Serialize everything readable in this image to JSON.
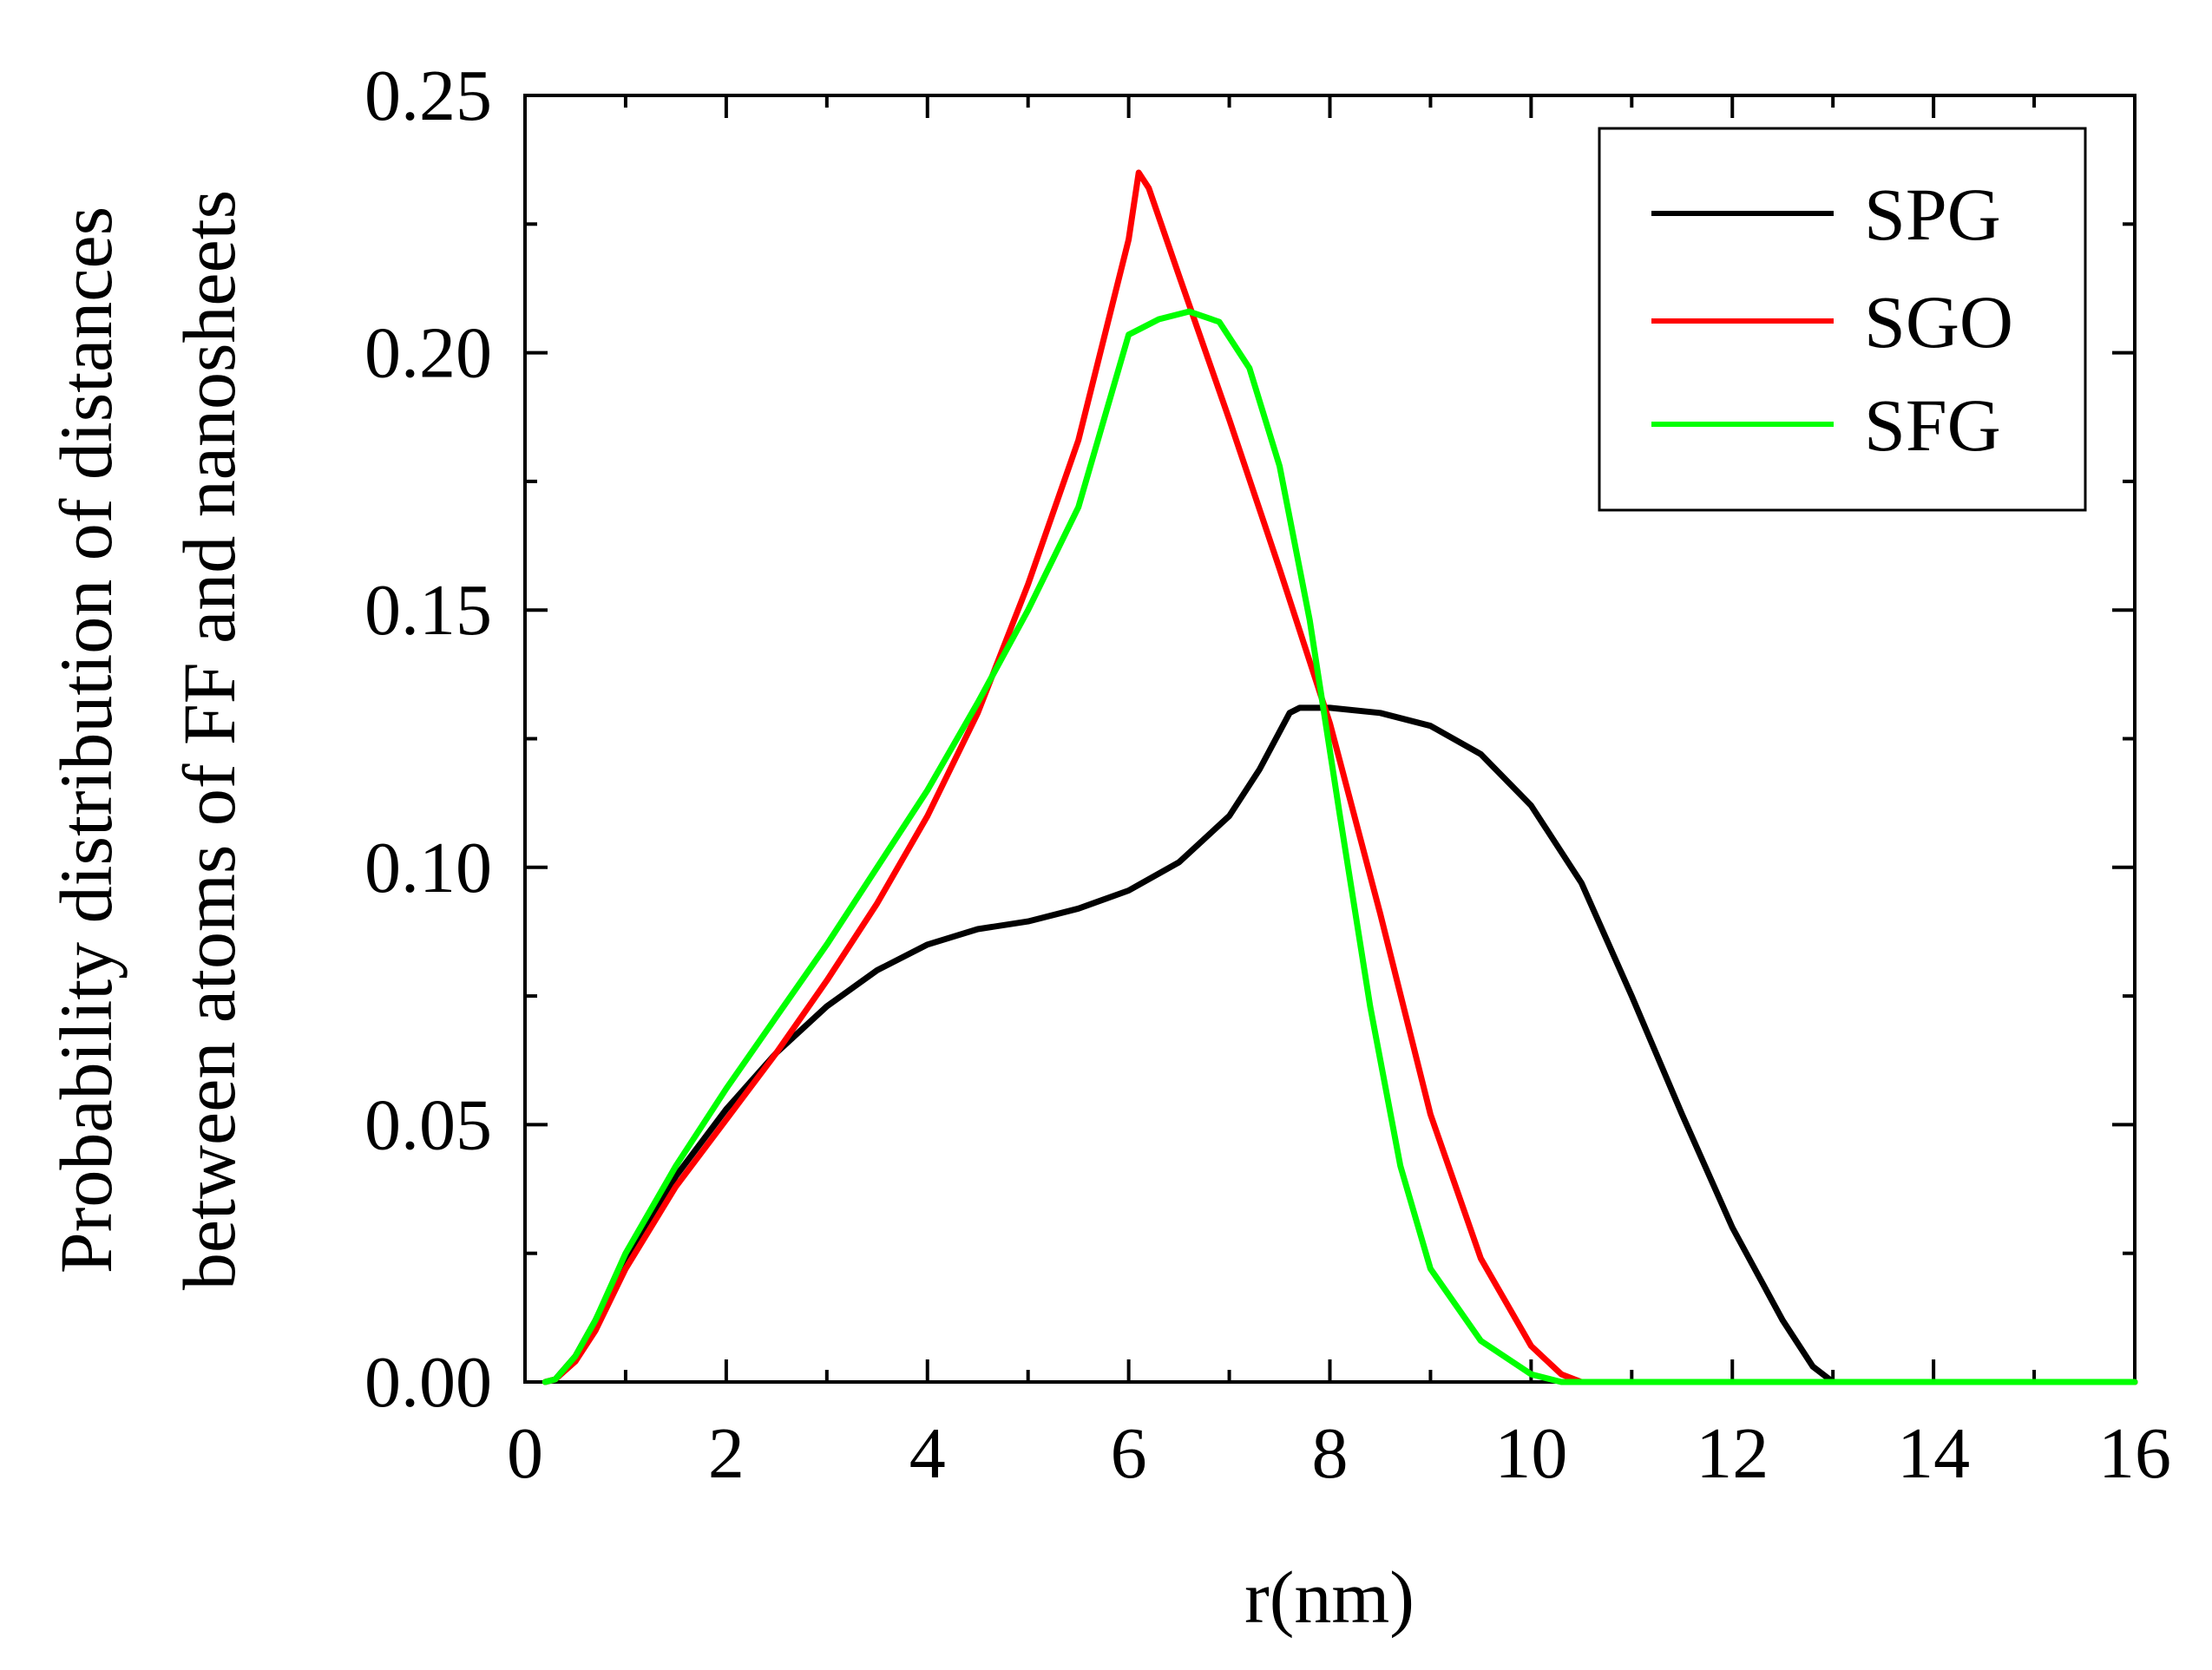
{
  "chart_data": {
    "type": "line",
    "title": "",
    "xlabel": "r(nm)",
    "ylabel_lines": [
      "Probability distribution of distances",
      "between atoms of FF and nanosheets"
    ],
    "xlim": [
      0,
      16
    ],
    "ylim": [
      0,
      0.25
    ],
    "xticks": [
      0,
      2,
      4,
      6,
      8,
      10,
      12,
      14,
      16
    ],
    "xtick_labels": [
      "0",
      "2",
      "4",
      "6",
      "8",
      "10",
      "12",
      "14",
      "16"
    ],
    "yticks": [
      0,
      0.05,
      0.1,
      0.15,
      0.2,
      0.25
    ],
    "ytick_labels": [
      "0.00",
      "0.05",
      "0.10",
      "0.15",
      "0.20",
      "0.25"
    ],
    "grid": false,
    "legend_position": "top-right",
    "series": [
      {
        "name": "SPG",
        "color": "#000000",
        "points": [
          [
            0.2,
            0.0
          ],
          [
            0.3,
            0.0005
          ],
          [
            0.5,
            0.005
          ],
          [
            0.7,
            0.012
          ],
          [
            1.0,
            0.024
          ],
          [
            1.5,
            0.04
          ],
          [
            2.0,
            0.053
          ],
          [
            2.5,
            0.064
          ],
          [
            3.0,
            0.073
          ],
          [
            3.5,
            0.08
          ],
          [
            4.0,
            0.085
          ],
          [
            4.5,
            0.088
          ],
          [
            5.0,
            0.0895
          ],
          [
            5.5,
            0.092
          ],
          [
            6.0,
            0.0955
          ],
          [
            6.5,
            0.101
          ],
          [
            7.0,
            0.11
          ],
          [
            7.3,
            0.119
          ],
          [
            7.6,
            0.13
          ],
          [
            7.7,
            0.131
          ],
          [
            8.0,
            0.131
          ],
          [
            8.5,
            0.13
          ],
          [
            9.0,
            0.1275
          ],
          [
            9.5,
            0.122
          ],
          [
            10.0,
            0.112
          ],
          [
            10.5,
            0.097
          ],
          [
            11.0,
            0.075
          ],
          [
            11.5,
            0.052
          ],
          [
            12.0,
            0.03
          ],
          [
            12.5,
            0.012
          ],
          [
            12.8,
            0.003
          ],
          [
            13.0,
            0.0
          ],
          [
            14.0,
            0.0
          ],
          [
            15.0,
            0.0
          ],
          [
            16.0,
            0.0
          ]
        ]
      },
      {
        "name": "SGO",
        "color": "#ff0000",
        "points": [
          [
            0.2,
            0.0
          ],
          [
            0.3,
            0.0005
          ],
          [
            0.5,
            0.004
          ],
          [
            0.7,
            0.01
          ],
          [
            1.0,
            0.022
          ],
          [
            1.5,
            0.038
          ],
          [
            2.0,
            0.051
          ],
          [
            2.5,
            0.064
          ],
          [
            3.0,
            0.078
          ],
          [
            3.5,
            0.093
          ],
          [
            4.0,
            0.11
          ],
          [
            4.5,
            0.13
          ],
          [
            5.0,
            0.155
          ],
          [
            5.5,
            0.183
          ],
          [
            6.0,
            0.222
          ],
          [
            6.1,
            0.235
          ],
          [
            6.2,
            0.232
          ],
          [
            6.5,
            0.215
          ],
          [
            7.0,
            0.187
          ],
          [
            7.5,
            0.158
          ],
          [
            8.0,
            0.128
          ],
          [
            8.5,
            0.091
          ],
          [
            9.0,
            0.052
          ],
          [
            9.5,
            0.024
          ],
          [
            10.0,
            0.007
          ],
          [
            10.3,
            0.0015
          ],
          [
            10.5,
            0.0
          ],
          [
            11.0,
            0.0
          ],
          [
            12.0,
            0.0
          ],
          [
            14.0,
            0.0
          ],
          [
            16.0,
            0.0
          ]
        ]
      },
      {
        "name": "SFG",
        "color": "#00ff00",
        "points": [
          [
            0.2,
            0.0
          ],
          [
            0.3,
            0.0005
          ],
          [
            0.5,
            0.005
          ],
          [
            0.7,
            0.012
          ],
          [
            1.0,
            0.025
          ],
          [
            1.5,
            0.042
          ],
          [
            2.0,
            0.057
          ],
          [
            2.5,
            0.071
          ],
          [
            3.0,
            0.085
          ],
          [
            3.5,
            0.1
          ],
          [
            4.0,
            0.115
          ],
          [
            4.5,
            0.132
          ],
          [
            5.0,
            0.15
          ],
          [
            5.5,
            0.17
          ],
          [
            6.0,
            0.2035
          ],
          [
            6.1,
            0.2045
          ],
          [
            6.3,
            0.2065
          ],
          [
            6.6,
            0.208
          ],
          [
            6.9,
            0.206
          ],
          [
            7.2,
            0.197
          ],
          [
            7.5,
            0.178
          ],
          [
            7.8,
            0.148
          ],
          [
            8.1,
            0.11
          ],
          [
            8.4,
            0.073
          ],
          [
            8.7,
            0.042
          ],
          [
            9.0,
            0.022
          ],
          [
            9.5,
            0.008
          ],
          [
            10.0,
            0.0015
          ],
          [
            10.3,
            0.0
          ],
          [
            11.0,
            0.0
          ],
          [
            12.0,
            0.0
          ],
          [
            14.0,
            0.0
          ],
          [
            16.0,
            0.0
          ]
        ]
      }
    ]
  }
}
